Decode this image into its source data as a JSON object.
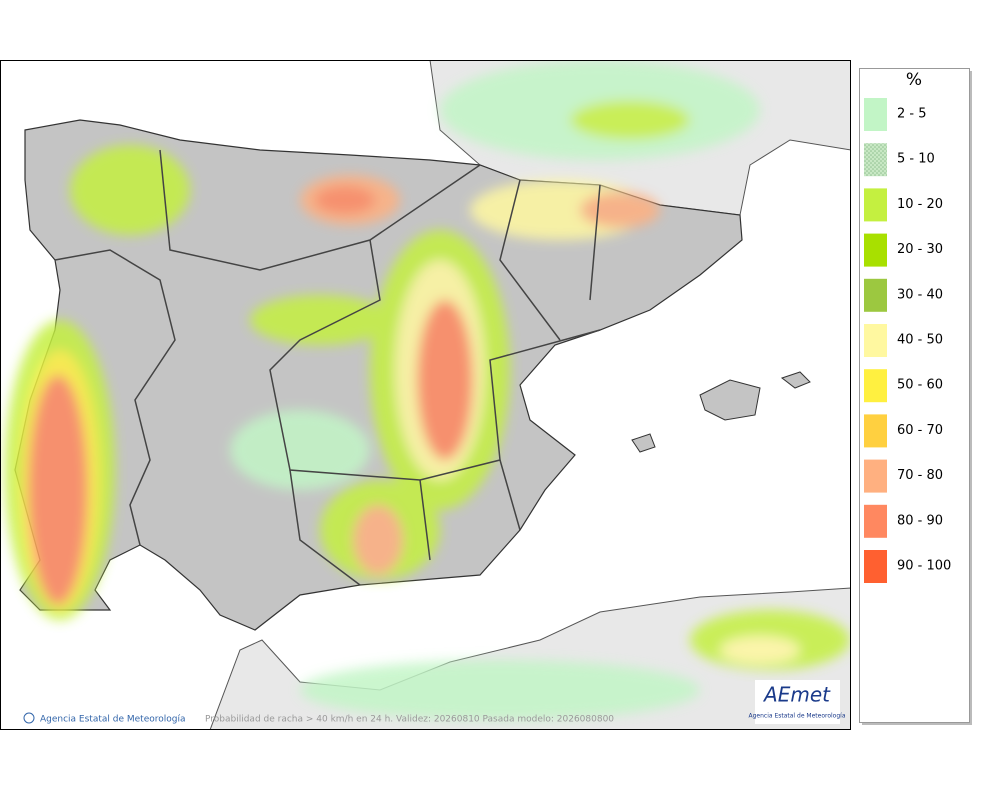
{
  "legend": {
    "title": "%",
    "items": [
      {
        "label": "2 - 5",
        "color": "#c2f5c6"
      },
      {
        "label": "5 - 10",
        "color": "#b4dcb0"
      },
      {
        "label": "10 - 20",
        "color": "#c4f040"
      },
      {
        "label": "20 - 30",
        "color": "#a8e000"
      },
      {
        "label": "30 - 40",
        "color": "#9cc840"
      },
      {
        "label": "40 - 50",
        "color": "#fff8a0"
      },
      {
        "label": "50 - 60",
        "color": "#fff040"
      },
      {
        "label": "60 - 70",
        "color": "#ffd040"
      },
      {
        "label": "70 - 80",
        "color": "#ffb080"
      },
      {
        "label": "80 - 90",
        "color": "#ff8860"
      },
      {
        "label": "90 - 100",
        "color": "#ff6030"
      }
    ]
  },
  "footer": {
    "credit": "Agencia Estatal de Meteorología",
    "caption": "Probabilidad de racha > 40 km/h en 24 h. Validez: 20260810 Pasada modelo: 2026080800"
  },
  "logo": {
    "name": "AEmet",
    "subtitle": "Agencia Estatal de Meteorología"
  }
}
